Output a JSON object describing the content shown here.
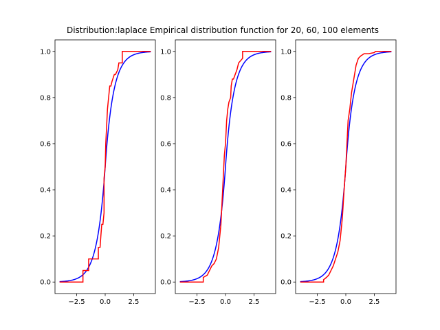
{
  "figure": {
    "title": "Distribution:laplace Empirical distribution function for 20, 60, 100 elements"
  },
  "chart_data": [
    {
      "type": "line",
      "xlim": [
        -4.4,
        4.4
      ],
      "ylim": [
        -0.05,
        1.05
      ],
      "xticks": [
        -2.5,
        0.0,
        2.5
      ],
      "xtick_labels": [
        "−2.5",
        "0.0",
        "2.5"
      ],
      "yticks": [
        0.0,
        0.2,
        0.4,
        0.6,
        0.8,
        1.0
      ],
      "ytick_labels": [
        "0.0",
        "0.2",
        "0.4",
        "0.6",
        "0.8",
        "1.0"
      ],
      "grid": false,
      "theoretical_cdf": {
        "distribution": "laplace",
        "loc": 0,
        "scale": 0.7071,
        "x_range": [
          -4,
          4
        ],
        "color": "#0000ff"
      },
      "empirical_cdf": {
        "color": "#ff0000",
        "x": [
          -4.0,
          -1.95,
          -1.95,
          -1.45,
          -1.45,
          -1.0,
          -1.0,
          -0.6,
          -0.6,
          -0.45,
          -0.38,
          -0.3,
          -0.2,
          -0.1,
          -0.1,
          0.0,
          0.05,
          0.1,
          0.15,
          0.2,
          0.3,
          0.4,
          0.5,
          0.6,
          0.8,
          0.9,
          1.1,
          1.2,
          1.5,
          1.5,
          4.0
        ],
        "y": [
          0.0,
          0.0,
          0.05,
          0.05,
          0.1,
          0.1,
          0.1,
          0.1,
          0.15,
          0.15,
          0.2,
          0.25,
          0.25,
          0.3,
          0.45,
          0.5,
          0.6,
          0.65,
          0.7,
          0.75,
          0.8,
          0.85,
          0.85,
          0.87,
          0.9,
          0.9,
          0.92,
          0.95,
          0.95,
          1.0,
          1.0
        ]
      }
    },
    {
      "type": "line",
      "xlim": [
        -4.4,
        4.4
      ],
      "ylim": [
        -0.05,
        1.05
      ],
      "xticks": [
        -2.5,
        0.0,
        2.5
      ],
      "xtick_labels": [
        "−2.5",
        "0.0",
        "2.5"
      ],
      "yticks": [
        0.0,
        0.2,
        0.4,
        0.6,
        0.8,
        1.0
      ],
      "ytick_labels": [
        "0.0",
        "0.2",
        "0.4",
        "0.6",
        "0.8",
        "1.0"
      ],
      "grid": false,
      "theoretical_cdf": {
        "distribution": "laplace",
        "loc": 0,
        "scale": 0.7071,
        "x_range": [
          -4,
          4
        ],
        "color": "#0000ff"
      },
      "empirical_cdf": {
        "color": "#ff0000",
        "x": [
          -4.0,
          -1.95,
          -1.95,
          -1.6,
          -1.4,
          -1.2,
          -1.0,
          -0.8,
          -0.6,
          -0.4,
          -0.3,
          -0.2,
          -0.1,
          0.0,
          0.1,
          0.2,
          0.3,
          0.45,
          0.5,
          0.6,
          0.7,
          0.85,
          1.0,
          1.15,
          1.5,
          1.5,
          4.0
        ],
        "y": [
          0.0,
          0.0,
          0.02,
          0.03,
          0.05,
          0.07,
          0.08,
          0.1,
          0.15,
          0.25,
          0.35,
          0.45,
          0.55,
          0.6,
          0.7,
          0.75,
          0.78,
          0.8,
          0.85,
          0.88,
          0.88,
          0.9,
          0.92,
          0.95,
          0.97,
          1.0,
          1.0
        ]
      }
    },
    {
      "type": "line",
      "xlim": [
        -4.4,
        4.4
      ],
      "ylim": [
        -0.05,
        1.05
      ],
      "xticks": [
        -2.5,
        0.0,
        2.5
      ],
      "xtick_labels": [
        "−2.5",
        "0.0",
        "2.5"
      ],
      "yticks": [
        0.0,
        0.2,
        0.4,
        0.6,
        0.8,
        1.0
      ],
      "ytick_labels": [
        "0.0",
        "0.2",
        "0.4",
        "0.6",
        "0.8",
        "1.0"
      ],
      "grid": false,
      "theoretical_cdf": {
        "distribution": "laplace",
        "loc": 0,
        "scale": 0.7071,
        "x_range": [
          -4,
          4
        ],
        "color": "#0000ff"
      },
      "empirical_cdf": {
        "color": "#ff0000",
        "x": [
          -4.0,
          -1.95,
          -1.95,
          -1.7,
          -1.5,
          -1.3,
          -1.1,
          -0.9,
          -0.7,
          -0.5,
          -0.3,
          -0.15,
          0.0,
          0.1,
          0.2,
          0.35,
          0.5,
          0.7,
          0.9,
          1.1,
          1.3,
          1.6,
          2.0,
          2.5,
          2.6,
          4.0
        ],
        "y": [
          0.0,
          0.0,
          0.01,
          0.02,
          0.03,
          0.05,
          0.07,
          0.1,
          0.13,
          0.18,
          0.28,
          0.4,
          0.5,
          0.6,
          0.7,
          0.75,
          0.82,
          0.88,
          0.94,
          0.97,
          0.98,
          0.99,
          0.99,
          0.995,
          1.0,
          1.0
        ]
      }
    }
  ]
}
